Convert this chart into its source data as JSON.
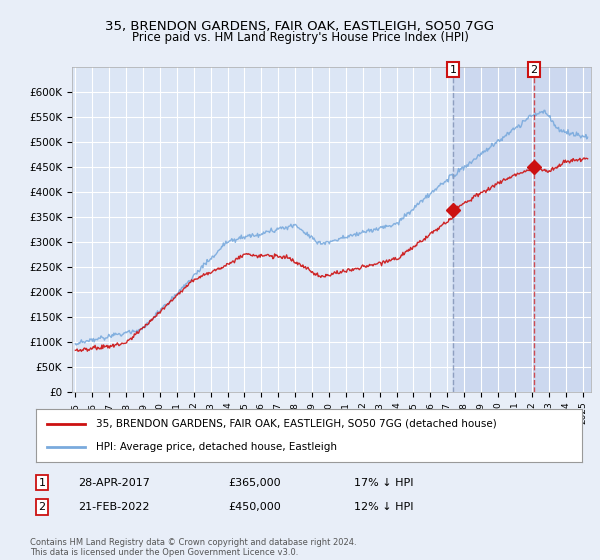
{
  "title": "35, BRENDON GARDENS, FAIR OAK, EASTLEIGH, SO50 7GG",
  "subtitle": "Price paid vs. HM Land Registry's House Price Index (HPI)",
  "ylabel_ticks": [
    "£0",
    "£50K",
    "£100K",
    "£150K",
    "£200K",
    "£250K",
    "£300K",
    "£350K",
    "£400K",
    "£450K",
    "£500K",
    "£550K",
    "£600K"
  ],
  "ytick_vals": [
    0,
    50000,
    100000,
    150000,
    200000,
    250000,
    300000,
    350000,
    400000,
    450000,
    500000,
    550000,
    600000
  ],
  "ylim": [
    0,
    650000
  ],
  "xlim_start": 1994.8,
  "xlim_end": 2025.5,
  "xtick_labels": [
    "1995",
    "1996",
    "1997",
    "1998",
    "1999",
    "2000",
    "2001",
    "2002",
    "2003",
    "2004",
    "2005",
    "2006",
    "2007",
    "2008",
    "2009",
    "2010",
    "2011",
    "2012",
    "2013",
    "2014",
    "2015",
    "2016",
    "2017",
    "2018",
    "2019",
    "2020",
    "2021",
    "2022",
    "2023",
    "2024",
    "2025"
  ],
  "background_color": "#e8eef8",
  "plot_bg_color": "#dce6f5",
  "grid_color": "#ffffff",
  "hpi_color": "#7aaadd",
  "price_color": "#cc1111",
  "sale1_year": 2017.33,
  "sale1_price": 365000,
  "sale2_year": 2022.13,
  "sale2_price": 450000,
  "sale1_label": "1",
  "sale2_label": "2",
  "shade_from": 2017.33,
  "shade_to": 2025.5,
  "shade_color": "#ccd8ef",
  "legend_label1": "35, BRENDON GARDENS, FAIR OAK, EASTLEIGH, SO50 7GG (detached house)",
  "legend_label2": "HPI: Average price, detached house, Eastleigh",
  "annot1_date": "28-APR-2017",
  "annot1_price": "£365,000",
  "annot1_hpi": "17% ↓ HPI",
  "annot2_date": "21-FEB-2022",
  "annot2_price": "£450,000",
  "annot2_hpi": "12% ↓ HPI",
  "footnote": "Contains HM Land Registry data © Crown copyright and database right 2024.\nThis data is licensed under the Open Government Licence v3.0."
}
